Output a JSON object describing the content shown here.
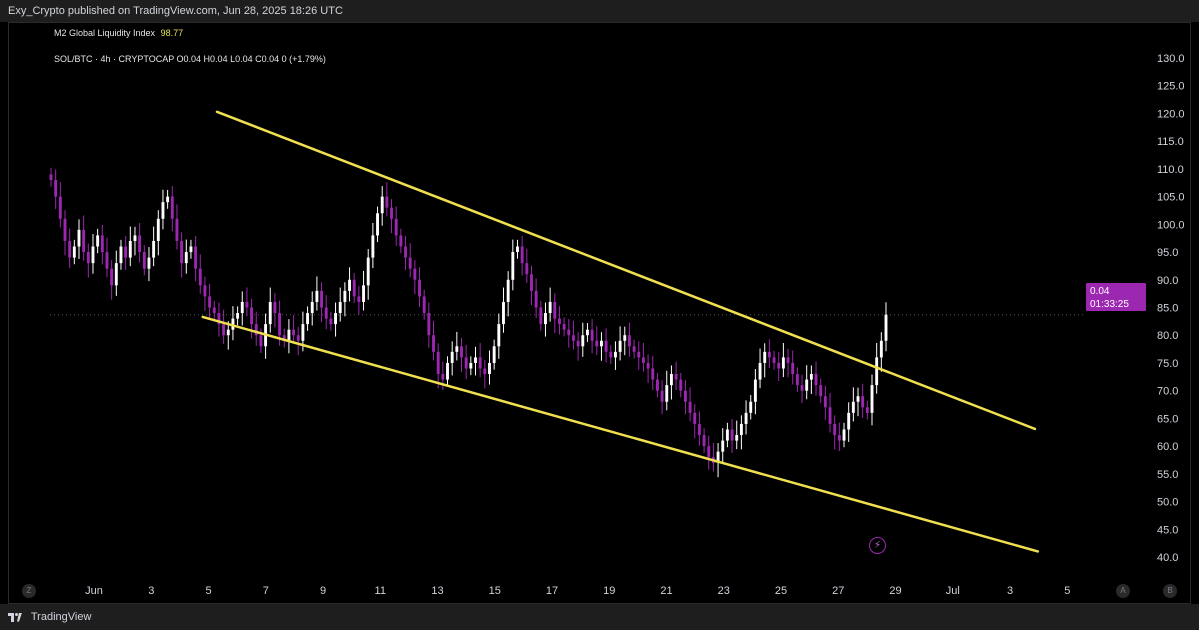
{
  "header": {
    "publish_text": "Exy_Crypto published on TradingView.com, Jun 28, 2025 18:26 UTC"
  },
  "indicator": {
    "name": "M2 Global Liquidity Index",
    "value": "98.77"
  },
  "legend": {
    "text": "SOL/BTC · 4h · CRYPTOCAP  O0.04  H0.04  L0.04  C0.04  0 (+1.79%)"
  },
  "price_tag": {
    "price": "0.04",
    "countdown": "01:33:25"
  },
  "footer": {
    "brand": "TradingView"
  },
  "scale_buttons": {
    "left": "Z",
    "auto": "A",
    "log": "B"
  },
  "colors": {
    "background": "#000000",
    "candle_up": "#ffffff",
    "candle_down": "#9c27b0",
    "trendline": "#f0e050",
    "price_tag": "#9c27b0"
  },
  "icons": {
    "flash": "lightning-icon",
    "logo": "tradingview-logo-icon"
  },
  "chart_data": {
    "type": "candlestick",
    "symbol": "SOL/BTC",
    "timeframe": "4h",
    "y_ticks": [
      "130.0",
      "125.0",
      "120.0",
      "115.0",
      "110.0",
      "105.0",
      "100.0",
      "95.0",
      "90.0",
      "85.0",
      "80.0",
      "75.0",
      "70.0",
      "65.0",
      "60.0",
      "55.0",
      "50.0",
      "45.0",
      "40.0"
    ],
    "ylim": [
      40,
      130
    ],
    "x_ticks": [
      "Jun",
      "3",
      "5",
      "7",
      "9",
      "11",
      "13",
      "15",
      "17",
      "19",
      "21",
      "23",
      "25",
      "27",
      "29",
      "Jul",
      "3",
      "5"
    ],
    "last_price_line": 83.7,
    "trendlines": [
      {
        "name": "upper",
        "start": {
          "day": 5.3,
          "value": 120.3
        },
        "end": {
          "day": 33.9,
          "value": 63.1
        }
      },
      {
        "name": "lower",
        "start": {
          "day": 4.8,
          "value": 83.3
        },
        "end": {
          "day": 34.0,
          "value": 41.0
        }
      }
    ],
    "closes": [
      108,
      105,
      101,
      97,
      94,
      96,
      99,
      95,
      93,
      96,
      98,
      95,
      92,
      89,
      93,
      96,
      94,
      97,
      98,
      95,
      92,
      94,
      97,
      101,
      104,
      105,
      101,
      97,
      93,
      95,
      96,
      92,
      89,
      87,
      85,
      84,
      82,
      80,
      81,
      83,
      84,
      86,
      85,
      82,
      80,
      78,
      82,
      86,
      84,
      80,
      79,
      81,
      80,
      79,
      82,
      84,
      86,
      88,
      85,
      83,
      82,
      84,
      86,
      88,
      90,
      87,
      86,
      89,
      94,
      98,
      102,
      105,
      103,
      101,
      98,
      96,
      94,
      92,
      90,
      87,
      84,
      80,
      77,
      73,
      72,
      75,
      77,
      78,
      76,
      74,
      75,
      76,
      74,
      73,
      75,
      78,
      82,
      86,
      90,
      95,
      96,
      93,
      91,
      88,
      85,
      82,
      84,
      86,
      83,
      82,
      81,
      80,
      79,
      78,
      80,
      81,
      79,
      78,
      79,
      77,
      76,
      77,
      79,
      80,
      78,
      77,
      76,
      75,
      74,
      72,
      70,
      68,
      71,
      73,
      72,
      70,
      68,
      66,
      64,
      62,
      60,
      58,
      57,
      59,
      61,
      63,
      61,
      62,
      64,
      66,
      68,
      72,
      75,
      77,
      76,
      75,
      74,
      76,
      75,
      73,
      71,
      70,
      72,
      73,
      71,
      69,
      67,
      64,
      62,
      61,
      63,
      66,
      68,
      69,
      67,
      66,
      71,
      76,
      79,
      83.7
    ]
  }
}
